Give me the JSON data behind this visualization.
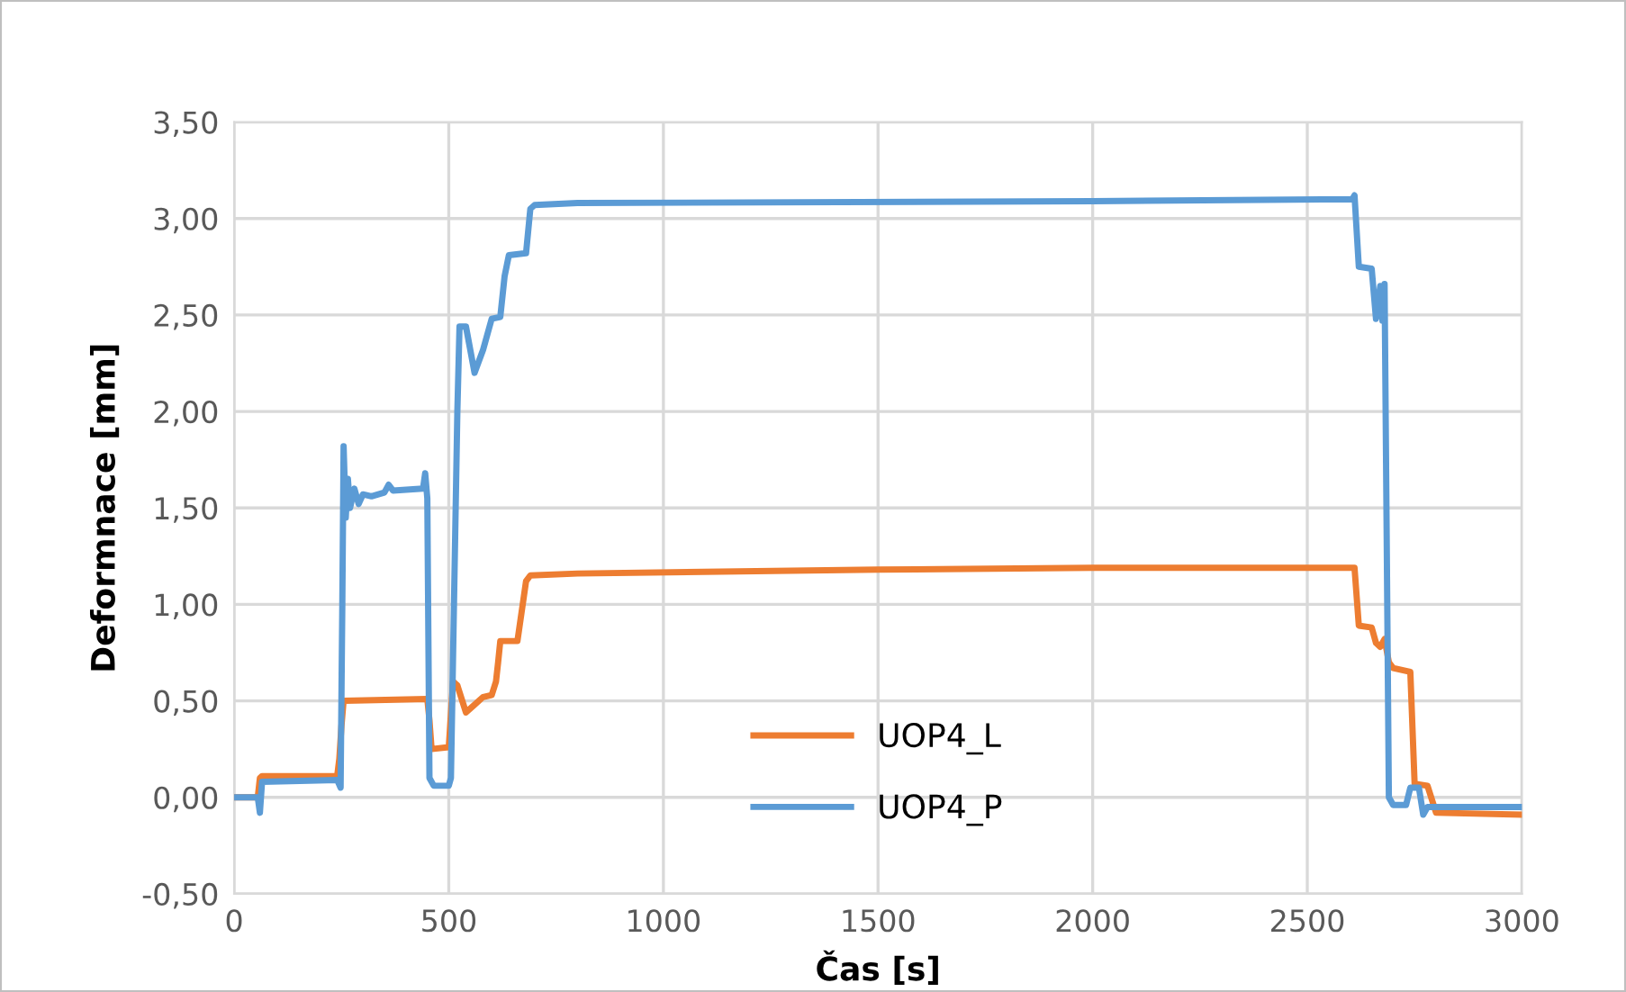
{
  "chart_data": {
    "type": "line",
    "xlabel": "Čas [s]",
    "ylabel": "Deformnace [mm]",
    "xlim": [
      0,
      3000
    ],
    "xticks": [
      0,
      500,
      1000,
      1500,
      2000,
      2500,
      3000
    ],
    "ylim": [
      -0.5,
      3.5
    ],
    "yticks": [
      {
        "value": -0.5,
        "label": "-0,50"
      },
      {
        "value": 0,
        "label": "0,00"
      },
      {
        "value": 0.5,
        "label": "0,50"
      },
      {
        "value": 1,
        "label": "1,00"
      },
      {
        "value": 1.5,
        "label": "1,50"
      },
      {
        "value": 2,
        "label": "2,00"
      },
      {
        "value": 2.5,
        "label": "2,50"
      },
      {
        "value": 3,
        "label": "3,00"
      },
      {
        "value": 3.5,
        "label": "3,50"
      }
    ],
    "grid": true,
    "legend": "bottom",
    "marker": "none",
    "line_style": "solid",
    "series": [
      {
        "name": "UOP4_L",
        "color": "#ed7d31",
        "x": [
          0,
          55,
          60,
          65,
          240,
          245,
          250,
          255,
          450,
          455,
          460,
          500,
          510,
          520,
          540,
          560,
          580,
          600,
          610,
          615,
          620,
          660,
          680,
          690,
          800,
          1500,
          2000,
          2610,
          2620,
          2650,
          2660,
          2670,
          2680,
          2690,
          2700,
          2740,
          2750,
          2780,
          2800,
          3000
        ],
        "values": [
          0,
          0,
          0.1,
          0.11,
          0.11,
          0.2,
          0.37,
          0.5,
          0.51,
          0.4,
          0.25,
          0.26,
          0.6,
          0.58,
          0.44,
          0.48,
          0.52,
          0.53,
          0.6,
          0.7,
          0.81,
          0.81,
          1.12,
          1.15,
          1.16,
          1.18,
          1.19,
          1.19,
          0.89,
          0.88,
          0.8,
          0.78,
          0.82,
          0.7,
          0.67,
          0.65,
          0.07,
          0.06,
          -0.08,
          -0.09
        ]
      },
      {
        "name": "UOP4_P",
        "color": "#5b9bd5",
        "x": [
          0,
          55,
          60,
          65,
          240,
          248,
          252,
          255,
          260,
          265,
          270,
          280,
          290,
          300,
          320,
          350,
          360,
          370,
          440,
          445,
          450,
          455,
          465,
          500,
          505,
          520,
          525,
          540,
          560,
          580,
          600,
          620,
          630,
          640,
          680,
          690,
          700,
          800,
          2000,
          2605,
          2610,
          2620,
          2650,
          2660,
          2670,
          2675,
          2680,
          2690,
          2700,
          2730,
          2740,
          2760,
          2770,
          2780,
          3000
        ],
        "values": [
          0,
          0,
          -0.08,
          0.08,
          0.09,
          0.05,
          1.0,
          1.82,
          1.45,
          1.65,
          1.5,
          1.6,
          1.52,
          1.57,
          1.56,
          1.58,
          1.62,
          1.59,
          1.6,
          1.68,
          1.55,
          0.1,
          0.06,
          0.06,
          0.1,
          2.0,
          2.44,
          2.44,
          2.2,
          2.32,
          2.48,
          2.49,
          2.7,
          2.81,
          2.82,
          3.05,
          3.07,
          3.08,
          3.09,
          3.1,
          3.12,
          2.75,
          2.74,
          2.48,
          2.65,
          2.47,
          2.66,
          0.0,
          -0.04,
          -0.04,
          0.05,
          0.05,
          -0.09,
          -0.05,
          -0.05
        ]
      }
    ]
  }
}
